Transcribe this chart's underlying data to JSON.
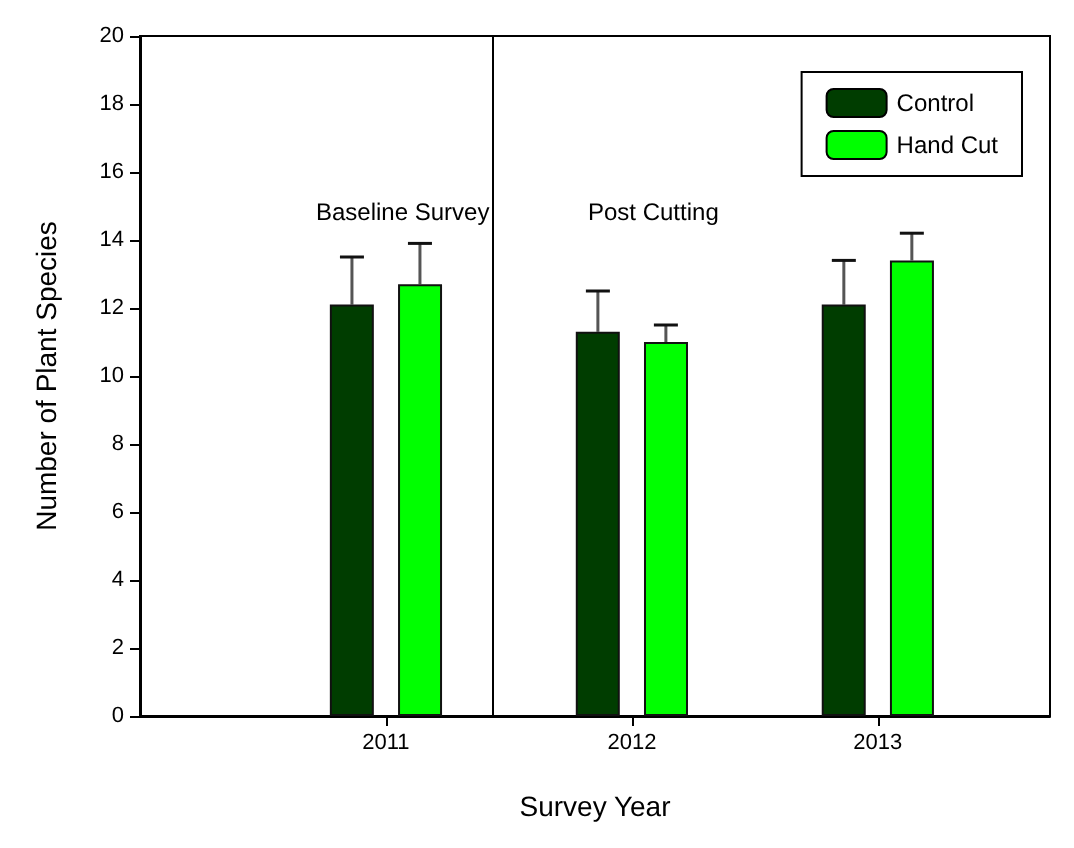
{
  "chart_data": {
    "type": "bar",
    "xlabel": "Survey Year",
    "ylabel": "Number of Plant Species",
    "x": [
      2011,
      2012,
      2013
    ],
    "xlim": [
      2010,
      2013.7
    ],
    "xticks": [
      2011,
      2012,
      2013
    ],
    "ylim": [
      0,
      20
    ],
    "yticks": [
      0,
      2,
      4,
      6,
      8,
      10,
      12,
      14,
      16,
      18,
      20
    ],
    "series": [
      {
        "name": "Control",
        "color": "#003d00",
        "values": [
          12.1,
          11.3,
          12.1
        ],
        "errors": [
          [
            12.1,
            13.5
          ],
          [
            11.3,
            12.5
          ],
          [
            12.1,
            13.4
          ]
        ]
      },
      {
        "name": "Hand Cut",
        "color": "#00ff00",
        "values": [
          12.7,
          11.0,
          13.4
        ],
        "errors": [
          [
            12.7,
            13.9
          ],
          [
            11.0,
            11.5
          ],
          [
            13.4,
            14.2
          ]
        ]
      }
    ],
    "ref_lines": [
      {
        "axis": "x",
        "value": 2011.43,
        "color": "#000000"
      }
    ],
    "annotations": [
      "Baseline Survey",
      "Post Cutting"
    ],
    "legend": "top right",
    "grid": false
  }
}
